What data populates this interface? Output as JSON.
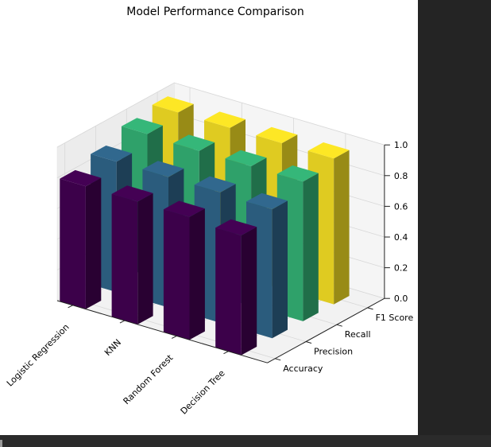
{
  "chart_data": {
    "type": "bar3d",
    "title": "Model Performance Comparison",
    "models": [
      "Logistic Regression",
      "KNN",
      "Random Forest",
      "Decision Tree"
    ],
    "metrics": [
      "Accuracy",
      "Precision",
      "Recall",
      "F1 Score"
    ],
    "zlabel": "",
    "zlim": [
      0,
      1
    ],
    "zticks": [
      "0.0",
      "0.2",
      "0.4",
      "0.6",
      "0.8",
      "1.0"
    ],
    "colors": {
      "Accuracy": "#440154",
      "Precision": "#31688e",
      "Recall": "#35b779",
      "F1 Score": "#fde725"
    },
    "values": {
      "Accuracy": [
        0.8,
        0.8,
        0.8,
        0.78
      ],
      "Precision": [
        0.85,
        0.85,
        0.85,
        0.84
      ],
      "Recall": [
        0.92,
        0.91,
        0.91,
        0.91
      ],
      "F1 Score": [
        0.95,
        0.95,
        0.95,
        0.95
      ]
    }
  }
}
